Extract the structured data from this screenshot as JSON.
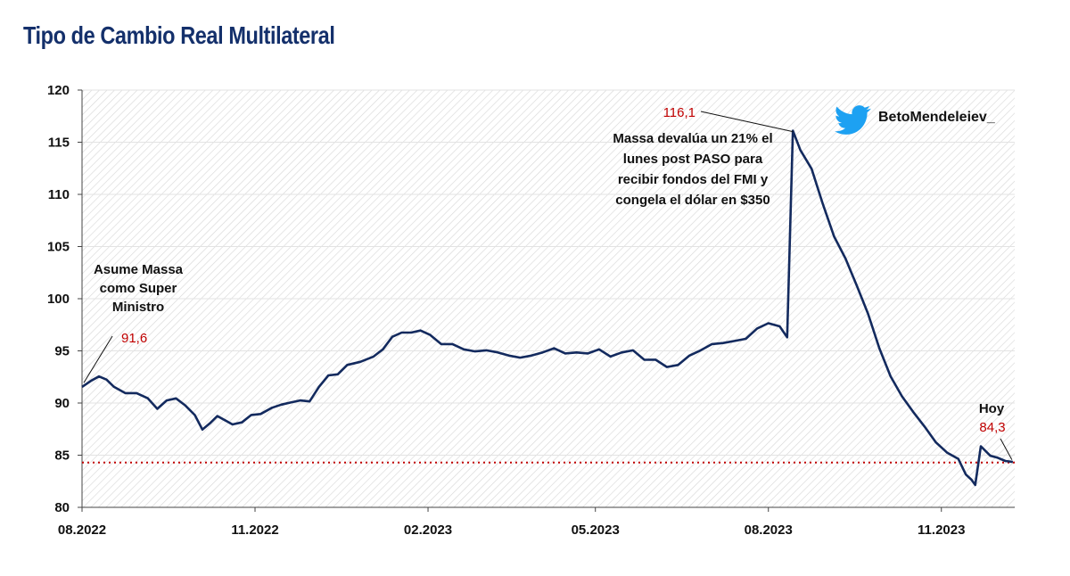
{
  "title": "Tipo de Cambio Real Multilateral",
  "colors": {
    "title": "#14306b",
    "line": "#132a5e",
    "reference": "#c00000",
    "annotation_value": "#c00000",
    "twitter": "#1da1f2"
  },
  "watermark": {
    "icon": "twitter-bird-icon",
    "handle": "BetoMendeleiev_"
  },
  "chart_data": {
    "type": "line",
    "title": "Tipo de Cambio Real Multilateral",
    "xlabel": "",
    "ylabel": "",
    "x_tick_labels": [
      "08.2022",
      "11.2022",
      "02.2023",
      "05.2023",
      "08.2023",
      "11.2023"
    ],
    "x_range": [
      "2022-08-01",
      "2023-12-10"
    ],
    "ylim": [
      80,
      120
    ],
    "y_ticks": [
      80,
      85,
      90,
      95,
      100,
      105,
      110,
      115,
      120
    ],
    "grid": "horizontal",
    "background": "diagonal hatch",
    "reference_line": {
      "value": 84.3,
      "style": "dotted",
      "color": "#c00000"
    },
    "series": [
      {
        "x": [
          "2022-08-01",
          "2022-08-06",
          "2022-08-10",
          "2022-08-14",
          "2022-08-18",
          "2022-08-24",
          "2022-08-30",
          "2022-09-05",
          "2022-09-10",
          "2022-09-15",
          "2022-09-20",
          "2022-09-25",
          "2022-09-30",
          "2022-10-04",
          "2022-10-08",
          "2022-10-12",
          "2022-10-16",
          "2022-10-20",
          "2022-10-25",
          "2022-10-30",
          "2022-11-04",
          "2022-11-10",
          "2022-11-15",
          "2022-11-20",
          "2022-11-25",
          "2022-11-30",
          "2022-12-05",
          "2022-12-10",
          "2022-12-15",
          "2022-12-20",
          "2022-12-27",
          "2023-01-03",
          "2023-01-08",
          "2023-01-13",
          "2023-01-18",
          "2023-01-23",
          "2023-01-28",
          "2023-02-02",
          "2023-02-08",
          "2023-02-14",
          "2023-02-20",
          "2023-02-26",
          "2023-03-04",
          "2023-03-10",
          "2023-03-16",
          "2023-03-22",
          "2023-03-28",
          "2023-04-03",
          "2023-04-09",
          "2023-04-15",
          "2023-04-21",
          "2023-04-27",
          "2023-05-03",
          "2023-05-09",
          "2023-05-15",
          "2023-05-21",
          "2023-05-27",
          "2023-06-02",
          "2023-06-08",
          "2023-06-14",
          "2023-06-20",
          "2023-06-26",
          "2023-07-02",
          "2023-07-08",
          "2023-07-14",
          "2023-07-20",
          "2023-07-26",
          "2023-08-01",
          "2023-08-07",
          "2023-08-11",
          "2023-08-14",
          "2023-08-18",
          "2023-08-24",
          "2023-08-30",
          "2023-09-05",
          "2023-09-11",
          "2023-09-17",
          "2023-09-23",
          "2023-09-29",
          "2023-10-05",
          "2023-10-11",
          "2023-10-17",
          "2023-10-23",
          "2023-10-29",
          "2023-11-04",
          "2023-11-10",
          "2023-11-14",
          "2023-11-17",
          "2023-11-19",
          "2023-11-22",
          "2023-11-27",
          "2023-12-01",
          "2023-12-05",
          "2023-12-09"
        ],
        "values": [
          91.6,
          92.1,
          92.6,
          92.2,
          91.6,
          90.9,
          91.0,
          90.4,
          89.5,
          90.2,
          90.5,
          89.7,
          88.9,
          87.4,
          88.1,
          88.7,
          88.4,
          87.9,
          88.2,
          88.8,
          89.0,
          89.5,
          89.9,
          90.0,
          90.3,
          90.1,
          91.6,
          92.6,
          92.8,
          93.6,
          94.0,
          94.4,
          95.2,
          96.3,
          96.8,
          96.7,
          97.0,
          96.5,
          95.7,
          95.6,
          95.2,
          94.9,
          95.1,
          94.8,
          94.6,
          94.3,
          94.6,
          94.8,
          95.3,
          94.7,
          94.9,
          94.7,
          95.2,
          94.4,
          94.9,
          95.0,
          94.2,
          94.1,
          93.5,
          93.6,
          94.6,
          95.0,
          95.7,
          95.7,
          96.0,
          96.1,
          97.2,
          97.6,
          97.4,
          96.3,
          116.1,
          114.2,
          112.5,
          109.0,
          106.0,
          103.8,
          101.3,
          98.5,
          95.3,
          92.5,
          90.7,
          89.1,
          87.8,
          86.2,
          85.3,
          84.6,
          83.2,
          82.6,
          82.2,
          85.8,
          85.0,
          84.7,
          84.5,
          84.3
        ]
      }
    ],
    "annotations": [
      {
        "lines": [
          "Asume Massa",
          "como Super",
          "Ministro"
        ],
        "value": "91,6"
      },
      {
        "lines": [
          "Massa devalúa un 21% el",
          "lunes post PASO para",
          "recibir fondos del FMI y",
          "congela el dólar en $350"
        ],
        "value": "116,1"
      },
      {
        "lines": [
          "Hoy"
        ],
        "value": "84,3"
      }
    ]
  }
}
